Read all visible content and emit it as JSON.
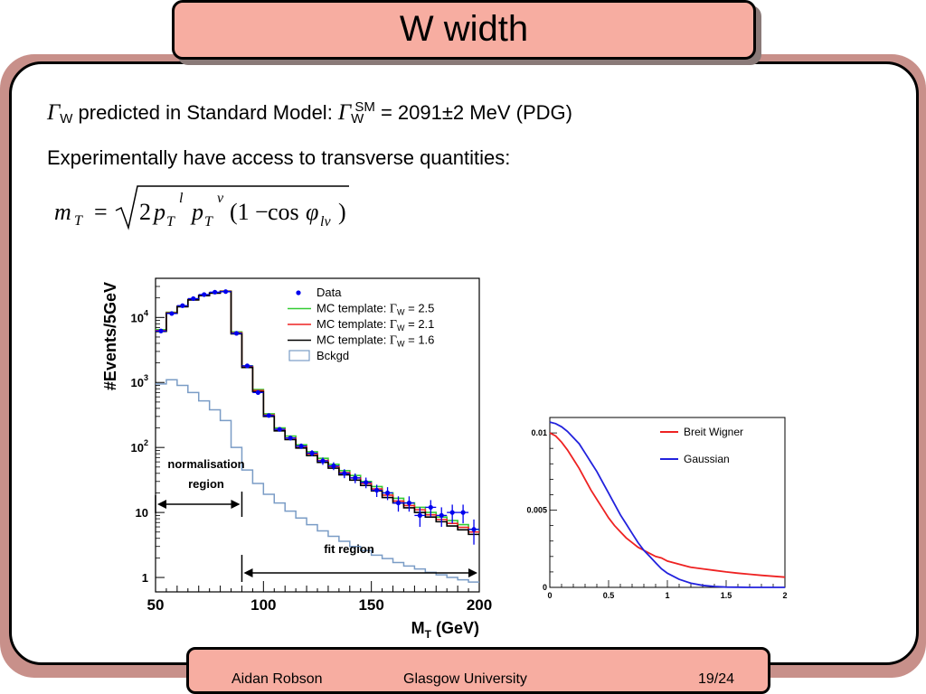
{
  "slide": {
    "title": "W width",
    "line1": {
      "gamma": "Γ",
      "sub_w": "W",
      "predicted": " predicted in Standard Model: ",
      "gamma2": "Γ",
      "sub_w2": "W",
      "sup_sm": "SM",
      "value": " = 2091±2 MeV (PDG)"
    },
    "line2": "Experimentally have access to transverse quantities:",
    "formula": {
      "lhs": "m",
      "lhs_sub": "T",
      "equals": "=",
      "two": "2",
      "p1": "p",
      "p1_sub": "T",
      "p1_sup": "l",
      "p2": "p",
      "p2_sub": "T",
      "p2_sup": "ν",
      "paren_open": "(1",
      "minus": "−",
      "cos": "cos",
      "phi": "φ",
      "phi_sub": "lν",
      "paren_close": ")"
    }
  },
  "footer": {
    "author": "Aidan Robson",
    "institution": "Glasgow University",
    "page": "19/24"
  },
  "chart_data": [
    {
      "type": "line",
      "title": "",
      "xlabel": "M",
      "xlabel_sub": "T",
      "xlabel_unit": " (GeV)",
      "ylabel": "#Events/5GeV",
      "xlim": [
        50,
        200
      ],
      "ylim": [
        0.6,
        40000
      ],
      "yscale": "log",
      "x_ticks": [
        "50",
        "100",
        "150",
        "200"
      ],
      "x_tick_values": [
        50,
        100,
        150,
        200
      ],
      "y_ticks": [
        {
          "value": 10000,
          "base": "10",
          "exp": "4"
        },
        {
          "value": 1000,
          "base": "10",
          "exp": "3"
        },
        {
          "value": 100,
          "base": "10",
          "exp": "2"
        },
        {
          "value": 10,
          "base": "10",
          "exp": ""
        },
        {
          "value": 1,
          "base": "1",
          "exp": ""
        }
      ],
      "bin_edges": [
        50,
        55,
        60,
        65,
        70,
        75,
        80,
        85,
        90,
        95,
        100,
        105,
        110,
        115,
        120,
        125,
        130,
        135,
        140,
        145,
        150,
        155,
        160,
        165,
        170,
        175,
        180,
        185,
        190,
        195,
        200
      ],
      "legend": {
        "placement": "top-right",
        "entries": [
          {
            "label": "Data",
            "color": "#0000ee"
          },
          {
            "label": "MC template: ",
            "greek": "Γ",
            "sub": "W",
            "suffix": " = 2.5",
            "color": "#33cc33"
          },
          {
            "label": "MC template: ",
            "greek": "Γ",
            "sub": "W",
            "suffix": " = 2.1",
            "color": "#ee2222"
          },
          {
            "label": "MC template: ",
            "greek": "Γ",
            "sub": "W",
            "suffix": " = 1.6",
            "color": "#000000"
          },
          {
            "label": "Bckgd",
            "color": "#7a9cc6"
          }
        ]
      },
      "series": [
        {
          "name": "MC template: ΓW = 2.5",
          "color": "#33cc33",
          "values": [
            6500,
            12000,
            15000,
            19000,
            22000,
            24000,
            25500,
            6000,
            1800,
            780,
            330,
            200,
            150,
            110,
            86,
            68,
            55,
            44,
            37,
            30,
            25,
            20,
            16.5,
            14,
            12,
            10,
            8.5,
            7.5,
            6.5,
            5.5
          ]
        },
        {
          "name": "MC template: ΓW = 2.1",
          "color": "#ee2222",
          "values": [
            6300,
            11800,
            14800,
            18800,
            21800,
            23800,
            25300,
            5800,
            1750,
            750,
            315,
            190,
            140,
            104,
            80,
            63,
            51,
            41,
            34,
            28,
            23,
            18.5,
            15,
            12.8,
            11,
            9.2,
            7.8,
            6.8,
            5.9,
            5.0
          ]
        },
        {
          "name": "MC template: ΓW = 1.6",
          "color": "#000000",
          "values": [
            6100,
            11600,
            14600,
            18600,
            21600,
            23600,
            25000,
            5600,
            1700,
            720,
            300,
            180,
            132,
            98,
            75,
            59,
            48,
            38,
            31.5,
            26,
            21.5,
            17,
            14,
            11.8,
            10,
            8.5,
            7.2,
            6.2,
            5.4,
            4.6
          ]
        },
        {
          "name": "Bckgd",
          "color": "#7a9cc6",
          "values": [
            950,
            1100,
            900,
            700,
            520,
            380,
            260,
            100,
            45,
            28,
            19,
            14,
            10.5,
            8.2,
            6.5,
            5.2,
            4.3,
            3.6,
            3.0,
            2.6,
            2.2,
            1.95,
            1.7,
            1.5,
            1.35,
            1.2,
            1.1,
            1.0,
            0.92,
            0.85
          ]
        }
      ],
      "data_points": {
        "name": "Data",
        "color": "#0000ee",
        "x": [
          52.5,
          57.5,
          62.5,
          67.5,
          72.5,
          77.5,
          82.5,
          87.5,
          92.5,
          97.5,
          102.5,
          107.5,
          112.5,
          117.5,
          122.5,
          127.5,
          132.5,
          137.5,
          142.5,
          147.5,
          152.5,
          157.5,
          162.5,
          167.5,
          172.5,
          177.5,
          182.5,
          187.5,
          192.5,
          197.5
        ],
        "y": [
          6200,
          11500,
          15200,
          19500,
          22500,
          24500,
          25000,
          5700,
          1800,
          700,
          310,
          190,
          140,
          105,
          82,
          62,
          52,
          40,
          34,
          29,
          22,
          20,
          14,
          14,
          9,
          12,
          9,
          10,
          10,
          5.5
        ],
        "err": [
          80,
          110,
          120,
          140,
          150,
          160,
          160,
          75,
          42,
          26,
          18,
          14,
          12,
          10,
          9,
          8,
          7.2,
          6.3,
          5.8,
          5.4,
          4.7,
          4.5,
          3.7,
          3.7,
          3.0,
          3.5,
          3.0,
          3.2,
          3.2,
          2.3
        ]
      },
      "annotations": [
        {
          "text": "normalisation",
          "type": "label"
        },
        {
          "text": "region",
          "type": "label"
        },
        {
          "text": "fit region",
          "type": "label"
        }
      ],
      "regions": [
        {
          "name": "normalisation region",
          "x_range": [
            50,
            90
          ]
        },
        {
          "name": "fit region",
          "x_range": [
            90,
            200
          ]
        }
      ]
    },
    {
      "type": "line",
      "title": "",
      "xlabel": "",
      "ylabel": "",
      "xlim": [
        0,
        2
      ],
      "ylim": [
        0,
        0.011
      ],
      "x_ticks": [
        "0",
        "0.5",
        "1",
        "1.5",
        "2"
      ],
      "x_tick_values": [
        0,
        0.5,
        1,
        1.5,
        2
      ],
      "y_ticks": [
        "0",
        "0.005",
        "0.01"
      ],
      "y_tick_values": [
        0,
        0.005,
        0.01
      ],
      "legend": {
        "placement": "top-right",
        "entries": [
          {
            "label": "Breit Wigner",
            "color": "#ee2222"
          },
          {
            "label": "Gaussian",
            "color": "#2222dd"
          }
        ]
      },
      "series": [
        {
          "name": "Breit Wigner",
          "color": "#ee2222",
          "x": [
            0,
            0.05,
            0.1,
            0.15,
            0.2,
            0.25,
            0.3,
            0.35,
            0.4,
            0.45,
            0.5,
            0.55,
            0.6,
            0.65,
            0.7,
            0.75,
            0.8,
            0.85,
            0.9,
            0.95,
            1.0,
            1.1,
            1.2,
            1.3,
            1.4,
            1.5,
            1.6,
            1.7,
            1.8,
            1.9,
            2.0
          ],
          "y": [
            0.01,
            0.0098,
            0.0094,
            0.0089,
            0.0083,
            0.0077,
            0.007,
            0.0063,
            0.0057,
            0.0051,
            0.0045,
            0.004,
            0.0036,
            0.0032,
            0.0029,
            0.0026,
            0.0024,
            0.0022,
            0.002,
            0.0019,
            0.0017,
            0.0015,
            0.0013,
            0.0012,
            0.0011,
            0.001,
            0.00092,
            0.00085,
            0.00078,
            0.00072,
            0.00066
          ]
        },
        {
          "name": "Gaussian",
          "color": "#2222dd",
          "x": [
            0,
            0.05,
            0.1,
            0.15,
            0.2,
            0.25,
            0.3,
            0.35,
            0.4,
            0.45,
            0.5,
            0.55,
            0.6,
            0.65,
            0.7,
            0.75,
            0.8,
            0.85,
            0.9,
            0.95,
            1.0,
            1.1,
            1.2,
            1.3,
            1.4,
            1.5,
            1.6,
            1.7,
            1.8,
            1.9,
            2.0
          ],
          "y": [
            0.0107,
            0.0106,
            0.0104,
            0.0101,
            0.0097,
            0.0093,
            0.0087,
            0.0081,
            0.0075,
            0.0068,
            0.0061,
            0.0054,
            0.0047,
            0.0041,
            0.0035,
            0.0029,
            0.0024,
            0.002,
            0.0016,
            0.0012,
            0.00092,
            0.00052,
            0.00027,
            0.00013,
            6e-05,
            2e-05,
            1e-05,
            0,
            0,
            0,
            0
          ]
        }
      ]
    }
  ]
}
